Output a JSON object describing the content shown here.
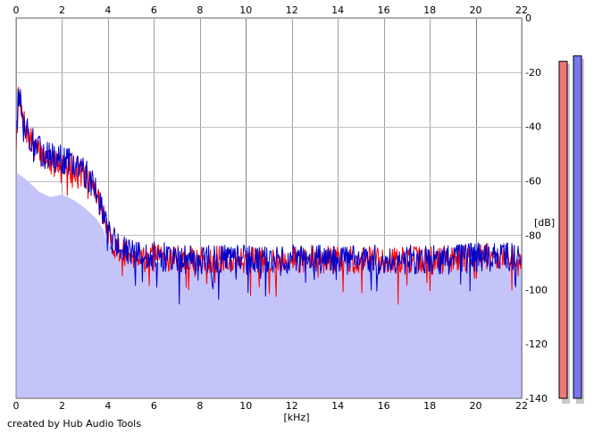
{
  "credit": "created by Hub Audio Tools",
  "chart_data": {
    "type": "line",
    "xlabel": "[kHz]",
    "ylabel": "[dB]",
    "xlim": [
      0,
      22
    ],
    "ylim": [
      -140,
      0
    ],
    "x_ticks": [
      0,
      2,
      4,
      6,
      8,
      10,
      12,
      14,
      16,
      18,
      20,
      22
    ],
    "y_ticks": [
      0,
      -20,
      -40,
      -60,
      -80,
      -100,
      -120,
      -140
    ],
    "grid": true,
    "colors": {
      "background": "#ffffff",
      "grid": "#c0c0c0",
      "grid_major": "#808080",
      "fill": "#c4c4fa",
      "series_red": "#ff0000",
      "series_blue": "#0000cc",
      "meter_red": "#ee7777",
      "meter_blue": "#7777ee",
      "meter_shadow": "#c8c8c8"
    },
    "fill_envelope": {
      "x": [
        0,
        0.2,
        0.5,
        1.0,
        1.5,
        2.0,
        2.5,
        3.0,
        3.5,
        3.8,
        4.0,
        4.5,
        5,
        6,
        8,
        10,
        12,
        14,
        16,
        18,
        20,
        22
      ],
      "y": [
        -57,
        -58,
        -60,
        -64,
        -66,
        -65,
        -67,
        -70,
        -74,
        -78,
        -83,
        -88,
        -89,
        -90,
        -90,
        -90,
        -90,
        -90,
        -90,
        -90,
        -90,
        -90
      ]
    },
    "series": [
      {
        "color": "#ff0000",
        "envelope": {
          "x": [
            0,
            0.1,
            0.3,
            0.6,
            1.0,
            1.5,
            2.0,
            2.5,
            3.0,
            3.5,
            3.8,
            4.0,
            4.5,
            5,
            6,
            8,
            10,
            12,
            14,
            16,
            18,
            20,
            22
          ],
          "y": [
            -47,
            -30,
            -38,
            -45,
            -50,
            -52,
            -53,
            -55,
            -58,
            -64,
            -72,
            -80,
            -86,
            -87,
            -88,
            -89,
            -89,
            -89,
            -89,
            -89,
            -89,
            -88,
            -88
          ]
        },
        "noise": 5,
        "seed": 7
      },
      {
        "color": "#0000cc",
        "envelope": {
          "x": [
            0,
            0.1,
            0.3,
            0.6,
            1.0,
            1.5,
            2.0,
            2.5,
            3.0,
            3.5,
            3.8,
            4.0,
            4.5,
            5,
            6,
            8,
            10,
            12,
            14,
            16,
            18,
            20,
            22
          ],
          "y": [
            -45,
            -28,
            -36,
            -44,
            -49,
            -51,
            -52,
            -54,
            -57,
            -63,
            -71,
            -79,
            -85,
            -87,
            -88,
            -89,
            -89,
            -89,
            -89,
            -89,
            -89,
            -88,
            -88
          ]
        },
        "noise": 5.5,
        "seed": 13
      }
    ],
    "level_meters": [
      {
        "channel": "red",
        "level_db": -16,
        "color": "#ee7777"
      },
      {
        "channel": "blue",
        "level_db": -14,
        "color": "#7777ee"
      }
    ]
  }
}
